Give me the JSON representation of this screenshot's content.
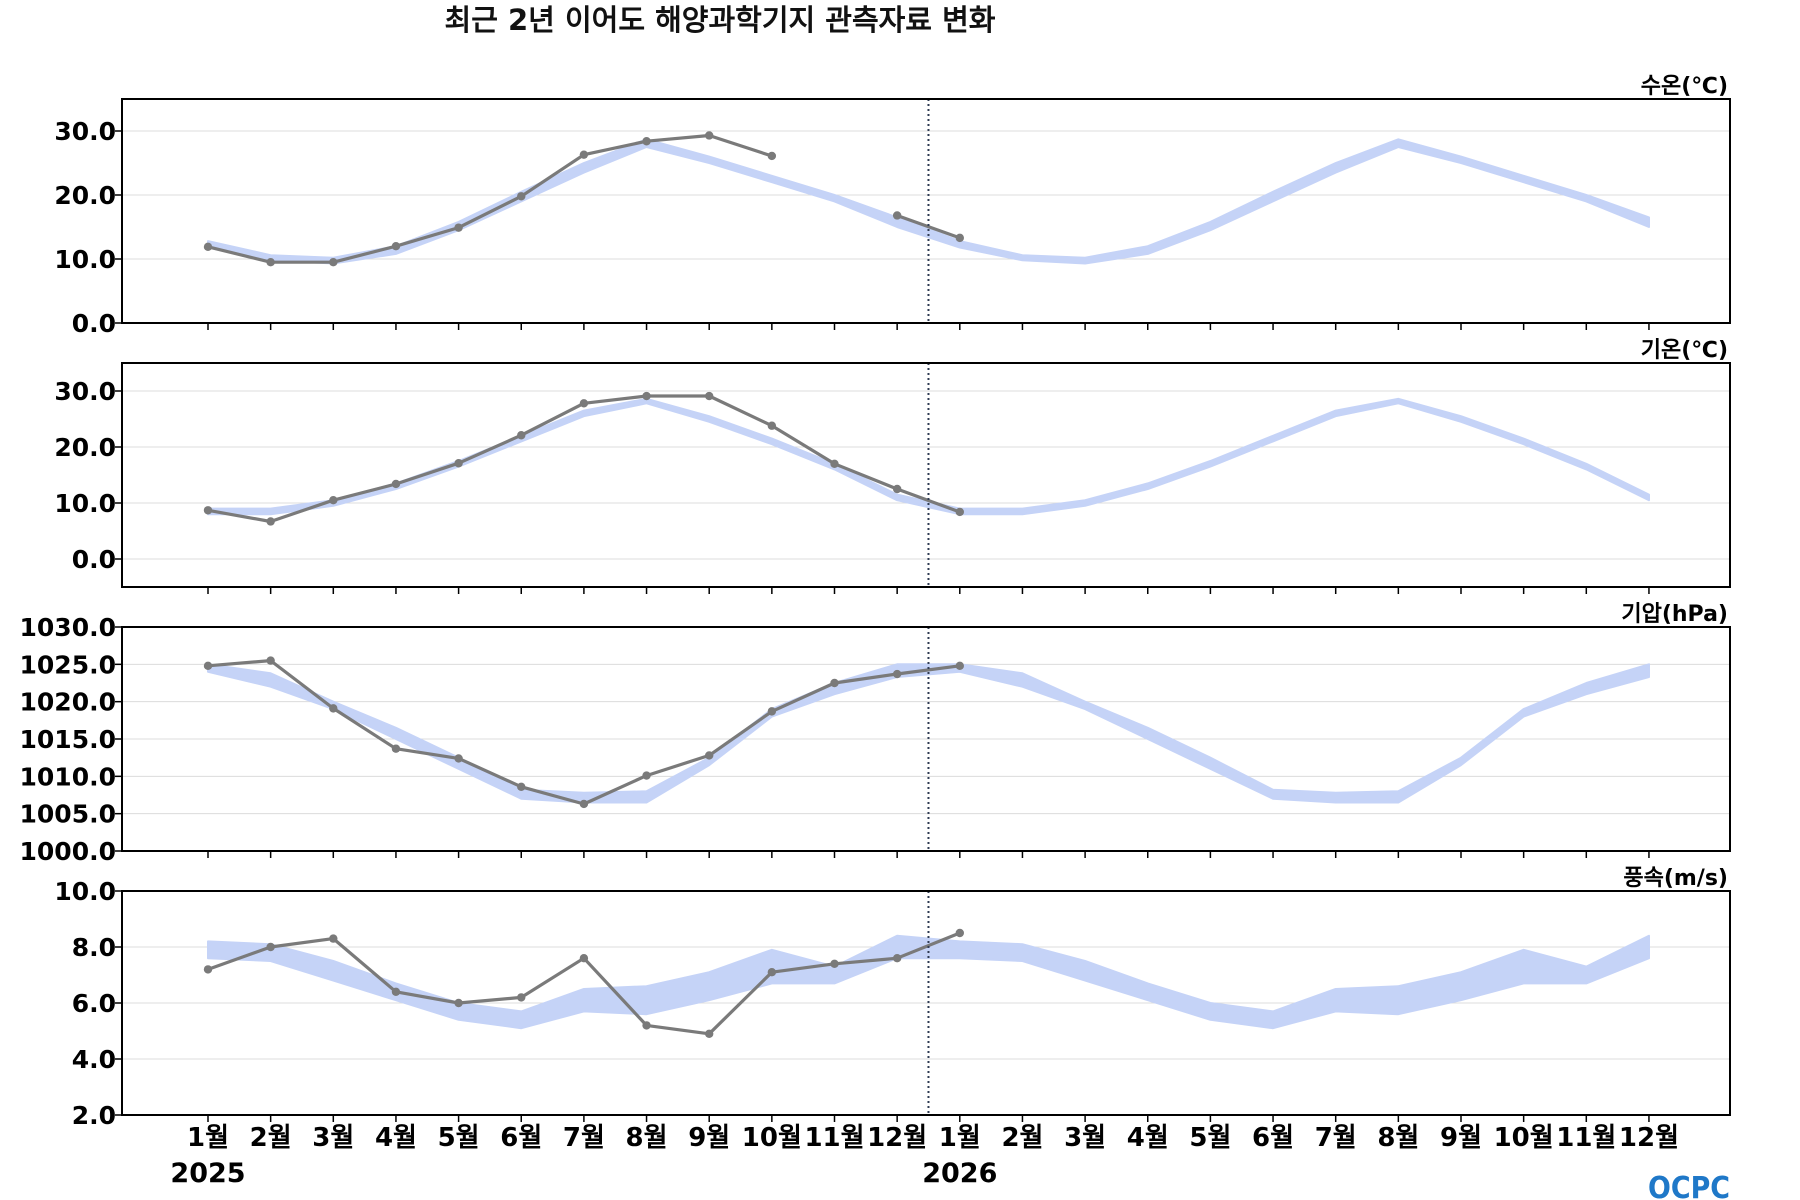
{
  "chart_data": {
    "type": "line",
    "title": "최근 2년 이어도 해양과학기지 관측자료 변화",
    "x_tick_labels": [
      "1월",
      "2월",
      "3월",
      "4월",
      "5월",
      "6월",
      "7월",
      "8월",
      "9월",
      "10월",
      "11월",
      "12월",
      "1월",
      "2월",
      "3월",
      "4월",
      "5월",
      "6월",
      "7월",
      "8월",
      "9월",
      "10월",
      "11월",
      "12월"
    ],
    "year_labels": [
      {
        "label": "2025",
        "month_index": 0
      },
      {
        "label": "2026",
        "month_index": 12
      }
    ],
    "current_marker_month_index": 11.5,
    "logo_text": "OCPC",
    "colors": {
      "observed": "#7a7a7a",
      "climatology_band": "#c5d3f7",
      "frame": "#000000",
      "grid": "#dcdcdc",
      "divider": "#2e3a52"
    },
    "panels": [
      {
        "name": "water-temperature",
        "ylabel": "수온(℃)",
        "ylim": [
          0,
          35
        ],
        "yticks": [
          0,
          10,
          20,
          30
        ],
        "tick_decimals": 1,
        "climatology_band": {
          "lower": [
            11.8,
            9.8,
            9.3,
            10.8,
            14.5,
            19.0,
            23.5,
            27.5,
            25.0,
            22.0,
            19.0,
            15.0,
            11.8,
            9.8,
            9.3,
            10.8,
            14.5,
            19.0,
            23.5,
            27.5,
            25.0,
            22.0,
            19.0,
            15.0
          ],
          "upper": [
            12.8,
            10.6,
            10.2,
            12.0,
            15.8,
            20.5,
            25.0,
            28.7,
            26.0,
            23.0,
            20.0,
            16.5,
            12.8,
            10.6,
            10.2,
            12.0,
            15.8,
            20.5,
            25.0,
            28.7,
            26.0,
            23.0,
            20.0,
            16.5
          ]
        },
        "observed": [
          11.9,
          9.5,
          9.5,
          12.0,
          14.9,
          19.8,
          26.3,
          28.4,
          29.3,
          26.1,
          null,
          16.8,
          13.3
        ]
      },
      {
        "name": "air-temperature",
        "ylabel": "기온(℃)",
        "ylim": [
          -5,
          35
        ],
        "yticks": [
          0,
          10,
          20,
          30
        ],
        "tick_decimals": 1,
        "climatology_band": {
          "lower": [
            8.0,
            8.0,
            9.5,
            12.5,
            16.5,
            21.0,
            25.5,
            27.8,
            24.5,
            20.5,
            16.0,
            10.5,
            8.0,
            8.0,
            9.5,
            12.5,
            16.5,
            21.0,
            25.5,
            27.8,
            24.5,
            20.5,
            16.0,
            10.5
          ],
          "upper": [
            9.0,
            9.0,
            10.5,
            13.5,
            17.5,
            22.0,
            26.5,
            28.6,
            25.5,
            21.5,
            17.0,
            11.5,
            9.0,
            9.0,
            10.5,
            13.5,
            17.5,
            22.0,
            26.5,
            28.6,
            25.5,
            21.5,
            17.0,
            11.5
          ]
        },
        "observed": [
          8.7,
          6.7,
          10.5,
          13.4,
          17.1,
          22.1,
          27.8,
          29.1,
          29.1,
          23.8,
          17.0,
          12.5,
          8.4
        ]
      },
      {
        "name": "air-pressure",
        "ylabel": "기압(hPa)",
        "ylim": [
          1000,
          1030
        ],
        "yticks": [
          1000,
          1005,
          1010,
          1015,
          1020,
          1025,
          1030
        ],
        "tick_decimals": 1,
        "climatology_band": {
          "lower": [
            1024.0,
            1022.0,
            1019.0,
            1015.0,
            1011.0,
            1007.0,
            1006.5,
            1006.5,
            1011.5,
            1018.0,
            1021.0,
            1023.3,
            1024.0,
            1022.0,
            1019.0,
            1015.0,
            1011.0,
            1007.0,
            1006.5,
            1006.5,
            1011.5,
            1018.0,
            1021.0,
            1023.3
          ],
          "upper": [
            1025.0,
            1023.8,
            1020.0,
            1016.5,
            1012.5,
            1008.2,
            1007.8,
            1008.0,
            1012.5,
            1019.0,
            1022.5,
            1025.0,
            1025.0,
            1023.8,
            1020.0,
            1016.5,
            1012.5,
            1008.2,
            1007.8,
            1008.0,
            1012.5,
            1019.0,
            1022.5,
            1025.0
          ]
        },
        "observed": [
          1024.8,
          1025.5,
          1019.1,
          1013.7,
          1012.4,
          1008.6,
          1006.3,
          1010.1,
          1012.8,
          1018.7,
          1022.5,
          1023.7,
          1024.8
        ]
      },
      {
        "name": "wind-speed",
        "ylabel": "풍속(m/s)",
        "ylim": [
          2,
          10
        ],
        "yticks": [
          2,
          4,
          6,
          8,
          10
        ],
        "tick_decimals": 1,
        "climatology_band": {
          "lower": [
            7.6,
            7.5,
            6.8,
            6.1,
            5.4,
            5.1,
            5.7,
            5.6,
            6.1,
            6.7,
            6.7,
            7.6,
            7.6,
            7.5,
            6.8,
            6.1,
            5.4,
            5.1,
            5.7,
            5.6,
            6.1,
            6.7,
            6.7,
            7.6
          ],
          "upper": [
            8.2,
            8.1,
            7.5,
            6.7,
            6.0,
            5.7,
            6.5,
            6.6,
            7.1,
            7.9,
            7.3,
            8.4,
            8.2,
            8.1,
            7.5,
            6.7,
            6.0,
            5.7,
            6.5,
            6.6,
            7.1,
            7.9,
            7.3,
            8.4
          ]
        },
        "observed": [
          7.2,
          8.0,
          8.3,
          6.4,
          6.0,
          6.2,
          7.6,
          5.2,
          4.9,
          7.1,
          7.4,
          7.6,
          8.5
        ]
      }
    ]
  }
}
